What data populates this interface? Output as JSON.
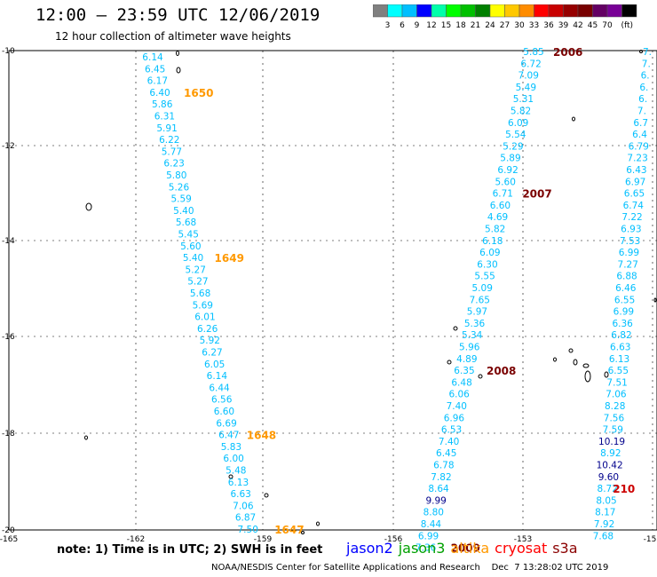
{
  "title": "12:00 – 23:59 UTC 12/06/2019",
  "subtitle": "12 hour collection of altimeter wave heights",
  "legend": {
    "unit": "(ft)",
    "colors": [
      "#808080",
      "#00ffff",
      "#00bfff",
      "#0000ff",
      "#00ffaa",
      "#00ff00",
      "#00c000",
      "#008000",
      "#ffff00",
      "#ffc800",
      "#ff8c00",
      "#ff0000",
      "#c80000",
      "#960000",
      "#780000",
      "#640064",
      "#780096",
      "#000000"
    ],
    "labels": [
      "3",
      "6",
      "9",
      "12",
      "15",
      "18",
      "21",
      "24",
      "27",
      "30",
      "33",
      "36",
      "39",
      "42",
      "45",
      "70"
    ]
  },
  "axes": {
    "x_labels": [
      "-165",
      "-162",
      "-159",
      "-156",
      "-153",
      "-15"
    ],
    "y_labels": [
      "-10",
      "-12",
      "-14",
      "-16",
      "-18",
      "-20"
    ]
  },
  "tracks": [
    {
      "name": "track-1647-1650",
      "color": "#00bfff",
      "points": [
        "6.14",
        "6.45",
        "6.17",
        "6.40",
        "5.86",
        "6.31",
        "5.91",
        "6.22",
        "5.77",
        "6.23",
        "5.80",
        "5.26",
        "5.59",
        "5.40",
        "5.68",
        "5.45",
        "5.60",
        "5.40",
        "5.27",
        "5.27",
        "5.68",
        "5.69",
        "6.01",
        "6.26",
        "5.92",
        "6.27",
        "6.05",
        "6.14",
        "6.44",
        "6.56",
        "6.60",
        "6.69",
        "6.47",
        "5.83",
        "6.00",
        "5.48",
        "6.13",
        "6.63",
        "7.06",
        "6.87",
        "7.50"
      ],
      "times": [
        {
          "label": "1650",
          "index": 3
        },
        {
          "label": "1649",
          "index": 17
        },
        {
          "label": "1648",
          "index": 32
        },
        {
          "label": "1647",
          "index": 40
        }
      ]
    },
    {
      "name": "track-2006-2009",
      "color": "#00bfff",
      "highlight_color": "#00008b",
      "points": [
        "5.85",
        "6.72",
        "7.09",
        "5.49",
        "5.31",
        "5.82",
        "6.09",
        "5.54",
        "5.29",
        "5.89",
        "6.92",
        "5.60",
        "6.71",
        "6.60",
        "4.69",
        "5.82",
        "6.18",
        "6.09",
        "6.30",
        "5.55",
        "5.09",
        "7.65",
        "5.97",
        "5.36",
        "5.34",
        "5.96",
        "4.89",
        "6.35",
        "6.48",
        "6.06",
        "7.40",
        "6.96",
        "6.53",
        "7.40",
        "6.45",
        "6.78",
        "7.82",
        "8.64",
        "9.99",
        "8.80",
        "8.44",
        "6.99",
        "7.36"
      ],
      "dark": [
        38
      ],
      "times": [
        {
          "label": "2006",
          "index": 0
        },
        {
          "label": "2007",
          "index": 12
        },
        {
          "label": "2008",
          "index": 27
        },
        {
          "label": "2009",
          "index": 42
        }
      ]
    },
    {
      "name": "track-2100",
      "color": "#00bfff",
      "highlight_color": "#00008b",
      "points": [
        "7.",
        "7.",
        "6.",
        "6.",
        "6.",
        "7.",
        "6.7",
        "6.4",
        "6.79",
        "7.23",
        "6.43",
        "6.97",
        "6.65",
        "6.74",
        "7.22",
        "6.93",
        "7.53",
        "6.99",
        "7.27",
        "6.88",
        "6.46",
        "6.55",
        "6.99",
        "6.36",
        "6.82",
        "6.63",
        "6.13",
        "6.55",
        "7.51",
        "7.06",
        "8.28",
        "7.56",
        "7.59",
        "10.19",
        "8.92",
        "10.42",
        "9.60",
        "8.72",
        "8.05",
        "8.17",
        "7.92",
        "7.68"
      ],
      "dark": [
        33,
        35,
        36
      ],
      "times": [
        {
          "label": "210",
          "index": 37
        }
      ]
    }
  ],
  "note": "note: 1) Time is in UTC; 2) SWH is in feet",
  "satellites": [
    {
      "name": "jason2",
      "color": "#0000ff"
    },
    {
      "name": "jason3",
      "color": "#00a000"
    },
    {
      "name": "altika",
      "color": "#ff9900"
    },
    {
      "name": "cryosat",
      "color": "#ff0000"
    },
    {
      "name": "s3a",
      "color": "#8b0000"
    }
  ],
  "footer": "NOAA/NESDIS Center for Satellite Applications and Research    Dec  7 13:28:02 UTC 2019"
}
